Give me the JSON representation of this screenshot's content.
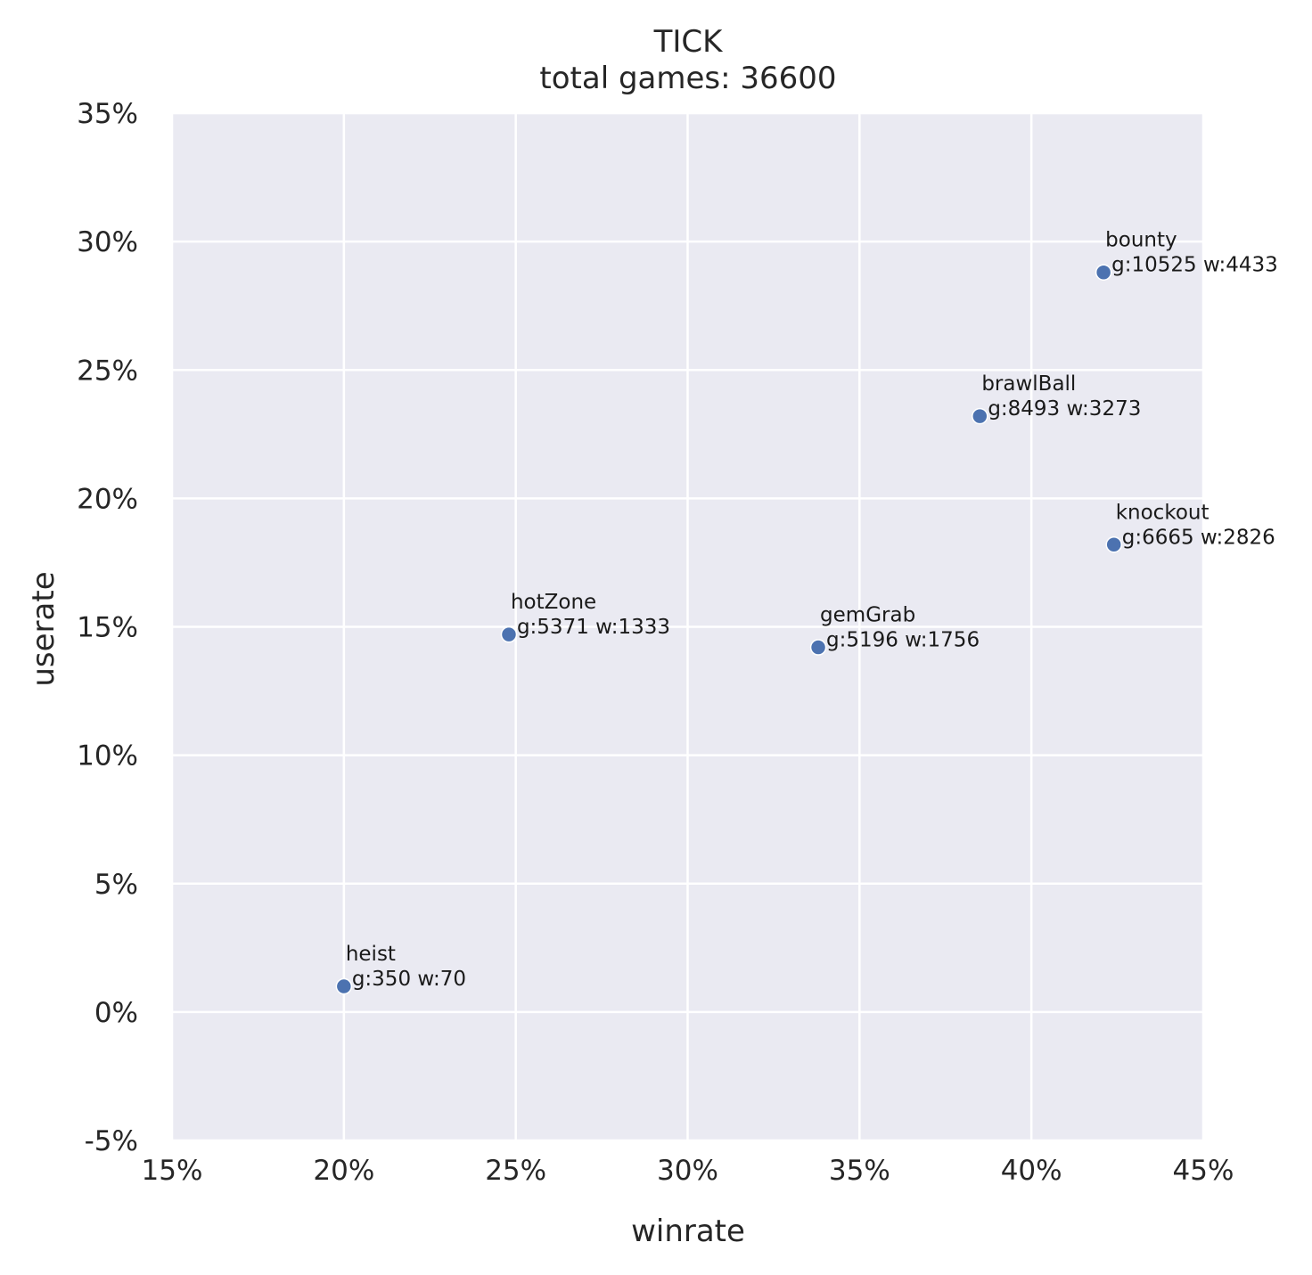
{
  "colors": {
    "plot_background": "#eaeaf2",
    "grid": "#ffffff",
    "marker": "#4c72b0",
    "text": "#262626"
  },
  "chart_data": {
    "type": "scatter",
    "title": "TICK",
    "subtitle": "total games: 36600",
    "xlabel": "winrate",
    "ylabel": "userate",
    "xlim": [
      15,
      45
    ],
    "ylim": [
      -5,
      35
    ],
    "x_ticks": [
      15,
      20,
      25,
      30,
      35,
      40,
      45
    ],
    "y_ticks": [
      -5,
      0,
      5,
      10,
      15,
      20,
      25,
      30,
      35
    ],
    "x_tick_labels": [
      "15%",
      "20%",
      "25%",
      "30%",
      "35%",
      "40%",
      "45%"
    ],
    "y_tick_labels": [
      "-5%",
      "0%",
      "5%",
      "10%",
      "15%",
      "20%",
      "25%",
      "30%",
      "35%"
    ],
    "grid": true,
    "points": [
      {
        "name": "bounty",
        "x": 42.1,
        "y": 28.8,
        "stats": "g:10525 w:4433"
      },
      {
        "name": "brawlBall",
        "x": 38.5,
        "y": 23.2,
        "stats": "g:8493 w:3273"
      },
      {
        "name": "knockout",
        "x": 42.4,
        "y": 18.2,
        "stats": "g:6665 w:2826"
      },
      {
        "name": "hotZone",
        "x": 24.8,
        "y": 14.7,
        "stats": "g:5371 w:1333"
      },
      {
        "name": "gemGrab",
        "x": 33.8,
        "y": 14.2,
        "stats": "g:5196 w:1756"
      },
      {
        "name": "heist",
        "x": 20.0,
        "y": 1.0,
        "stats": "g:350 w:70"
      }
    ]
  }
}
